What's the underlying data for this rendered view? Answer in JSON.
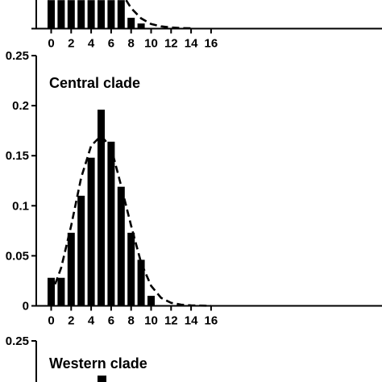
{
  "chart_data": [
    {
      "type": "bar",
      "title": "",
      "x_ticks": [
        "0",
        "2",
        "4",
        "6",
        "8",
        "10",
        "12",
        "14",
        "16"
      ],
      "xlim": [
        -0.5,
        16.5
      ],
      "partial": true,
      "bars": [
        {
          "x": 0,
          "y": 0.05
        },
        {
          "x": 1,
          "y": 0.05
        },
        {
          "x": 2,
          "y": 0.05
        },
        {
          "x": 3,
          "y": 0.05
        },
        {
          "x": 4,
          "y": 0.05
        },
        {
          "x": 5,
          "y": 0.05
        },
        {
          "x": 6,
          "y": 0.05
        },
        {
          "x": 7,
          "y": 0.05
        },
        {
          "x": 8,
          "y": 0.019
        },
        {
          "x": 9,
          "y": 0.009
        }
      ],
      "fit_curve": [
        {
          "x": 7.5,
          "y": 0.05
        },
        {
          "x": 8,
          "y": 0.036
        },
        {
          "x": 9,
          "y": 0.018
        },
        {
          "x": 10,
          "y": 0.008
        },
        {
          "x": 11,
          "y": 0.004
        },
        {
          "x": 12,
          "y": 0.002
        },
        {
          "x": 13,
          "y": 0.001
        },
        {
          "x": 14,
          "y": 0.0005
        }
      ]
    },
    {
      "type": "bar",
      "title": "Central clade",
      "ylim": [
        0,
        0.25
      ],
      "xlim": [
        -0.5,
        16.5
      ],
      "y_ticks": [
        "0",
        "0.05",
        "0.1",
        "0.15",
        "0.2",
        "0.25"
      ],
      "x_ticks": [
        "0",
        "2",
        "4",
        "6",
        "8",
        "10",
        "12",
        "14",
        "16"
      ],
      "bars": [
        {
          "x": 0,
          "y": 0.028
        },
        {
          "x": 1,
          "y": 0.028
        },
        {
          "x": 2,
          "y": 0.073
        },
        {
          "x": 3,
          "y": 0.11
        },
        {
          "x": 4,
          "y": 0.148
        },
        {
          "x": 5,
          "y": 0.196
        },
        {
          "x": 6,
          "y": 0.164
        },
        {
          "x": 7,
          "y": 0.119
        },
        {
          "x": 8,
          "y": 0.073
        },
        {
          "x": 9,
          "y": 0.046
        },
        {
          "x": 10,
          "y": 0.01
        }
      ],
      "fit_curve": [
        {
          "x": 0,
          "y": 0.011
        },
        {
          "x": 1,
          "y": 0.038
        },
        {
          "x": 2,
          "y": 0.08
        },
        {
          "x": 3,
          "y": 0.128
        },
        {
          "x": 4,
          "y": 0.16
        },
        {
          "x": 5,
          "y": 0.17
        },
        {
          "x": 6,
          "y": 0.158
        },
        {
          "x": 7,
          "y": 0.12
        },
        {
          "x": 8,
          "y": 0.08
        },
        {
          "x": 9,
          "y": 0.043
        },
        {
          "x": 10,
          "y": 0.02
        },
        {
          "x": 11,
          "y": 0.008
        },
        {
          "x": 12,
          "y": 0.003
        },
        {
          "x": 13,
          "y": 0.0012
        },
        {
          "x": 14,
          "y": 0.0005
        },
        {
          "x": 16,
          "y": 0.0
        }
      ]
    },
    {
      "type": "bar",
      "title": "Western clade",
      "ylim": [
        0,
        0.25
      ],
      "y_ticks": [
        "0.25"
      ],
      "partial": true,
      "bars": [
        {
          "x": 5,
          "y": 0.22
        }
      ]
    }
  ]
}
